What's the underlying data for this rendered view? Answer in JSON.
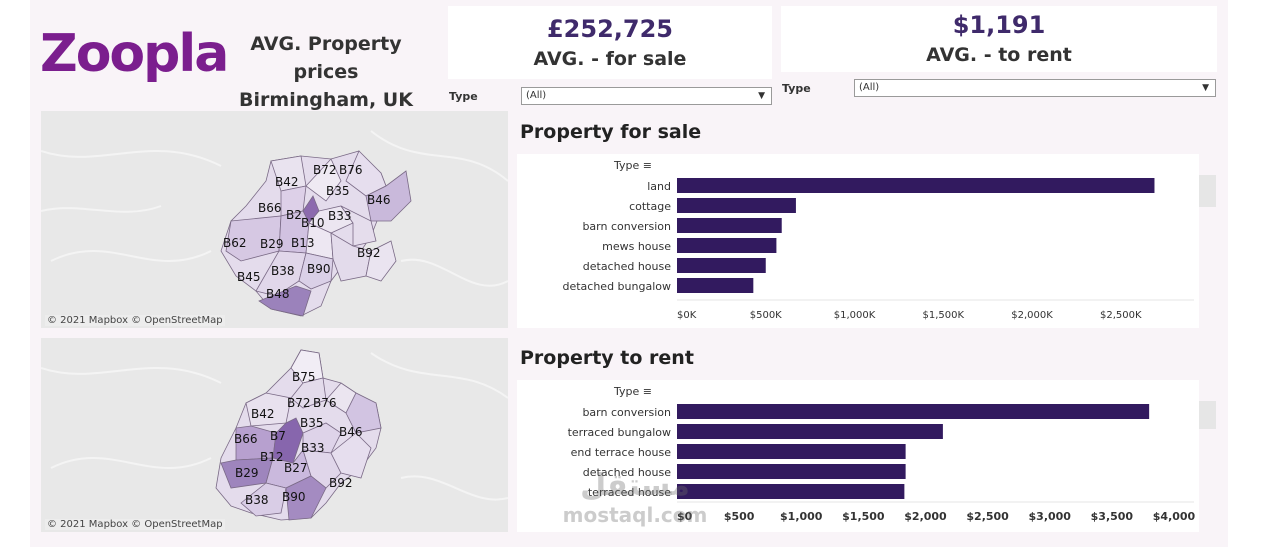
{
  "brand": {
    "logo_text": "Zoopla",
    "color": "#7b1e8e"
  },
  "header": {
    "title_line1": "AVG. Property prices",
    "title_line2": "Birmingham, UK"
  },
  "kpis": {
    "sale": {
      "value": "£252,725",
      "label": "AVG. - for sale"
    },
    "rent": {
      "value": "$1,191",
      "label": "AVG. - to rent"
    },
    "value_color": "#3f2a6b"
  },
  "filters": {
    "sale": {
      "label": "Type",
      "value": "(All)",
      "caret": "▼"
    },
    "rent": {
      "label": "Type",
      "value": "(All)",
      "caret": "▼"
    }
  },
  "maps": {
    "attribution": "© 2021 Mapbox  © OpenStreetMap",
    "sale_labels": [
      "B42",
      "B72",
      "B76",
      "B35",
      "B46",
      "B66",
      "B2",
      "B33",
      "B10",
      "B62",
      "B29",
      "B13",
      "B92",
      "B38",
      "B90",
      "B45",
      "B48"
    ],
    "rent_labels": [
      "B75",
      "B72",
      "B76",
      "B42",
      "B35",
      "B46",
      "B66",
      "B7",
      "B33",
      "B12",
      "B27",
      "B29",
      "B92",
      "B38",
      "B90"
    ]
  },
  "chart_data": [
    {
      "type": "bar",
      "title": "Property for sale",
      "header": "Type",
      "sort_icon": "sort-icon",
      "categories": [
        "land",
        "cottage",
        "barn conversion",
        "mews house",
        "detached house",
        "detached bungalow"
      ],
      "values": [
        2690000,
        670000,
        590000,
        560000,
        500000,
        430000
      ],
      "xticks": [
        0,
        500000,
        1000000,
        1500000,
        2000000,
        2500000
      ],
      "xtick_labels": [
        "$0K",
        "$500K",
        "$1,000K",
        "$1,500K",
        "$2,000K",
        "$2,500K"
      ],
      "xlim": [
        0,
        2800000
      ],
      "bar_color": "#321a5f"
    },
    {
      "type": "bar",
      "title": "Property to rent",
      "header": "Type",
      "sort_icon": "sort-icon",
      "categories": [
        "barn conversion",
        "terraced bungalow",
        "end terrace house",
        "detached house",
        "terraced house"
      ],
      "values": [
        3800,
        2140,
        1840,
        1840,
        1830
      ],
      "xticks": [
        0,
        500,
        1000,
        1500,
        2000,
        2500,
        3000,
        3500,
        4000
      ],
      "xtick_labels": [
        "$0",
        "$500",
        "$1,000",
        "$1,500",
        "$2,000",
        "$2,500",
        "$3,000",
        "$3,500",
        "$4,000"
      ],
      "xlim": [
        0,
        4000
      ],
      "bar_color": "#321a5f"
    }
  ],
  "watermark": {
    "arabic": "مستقل",
    "latin": "mostaql.com"
  }
}
